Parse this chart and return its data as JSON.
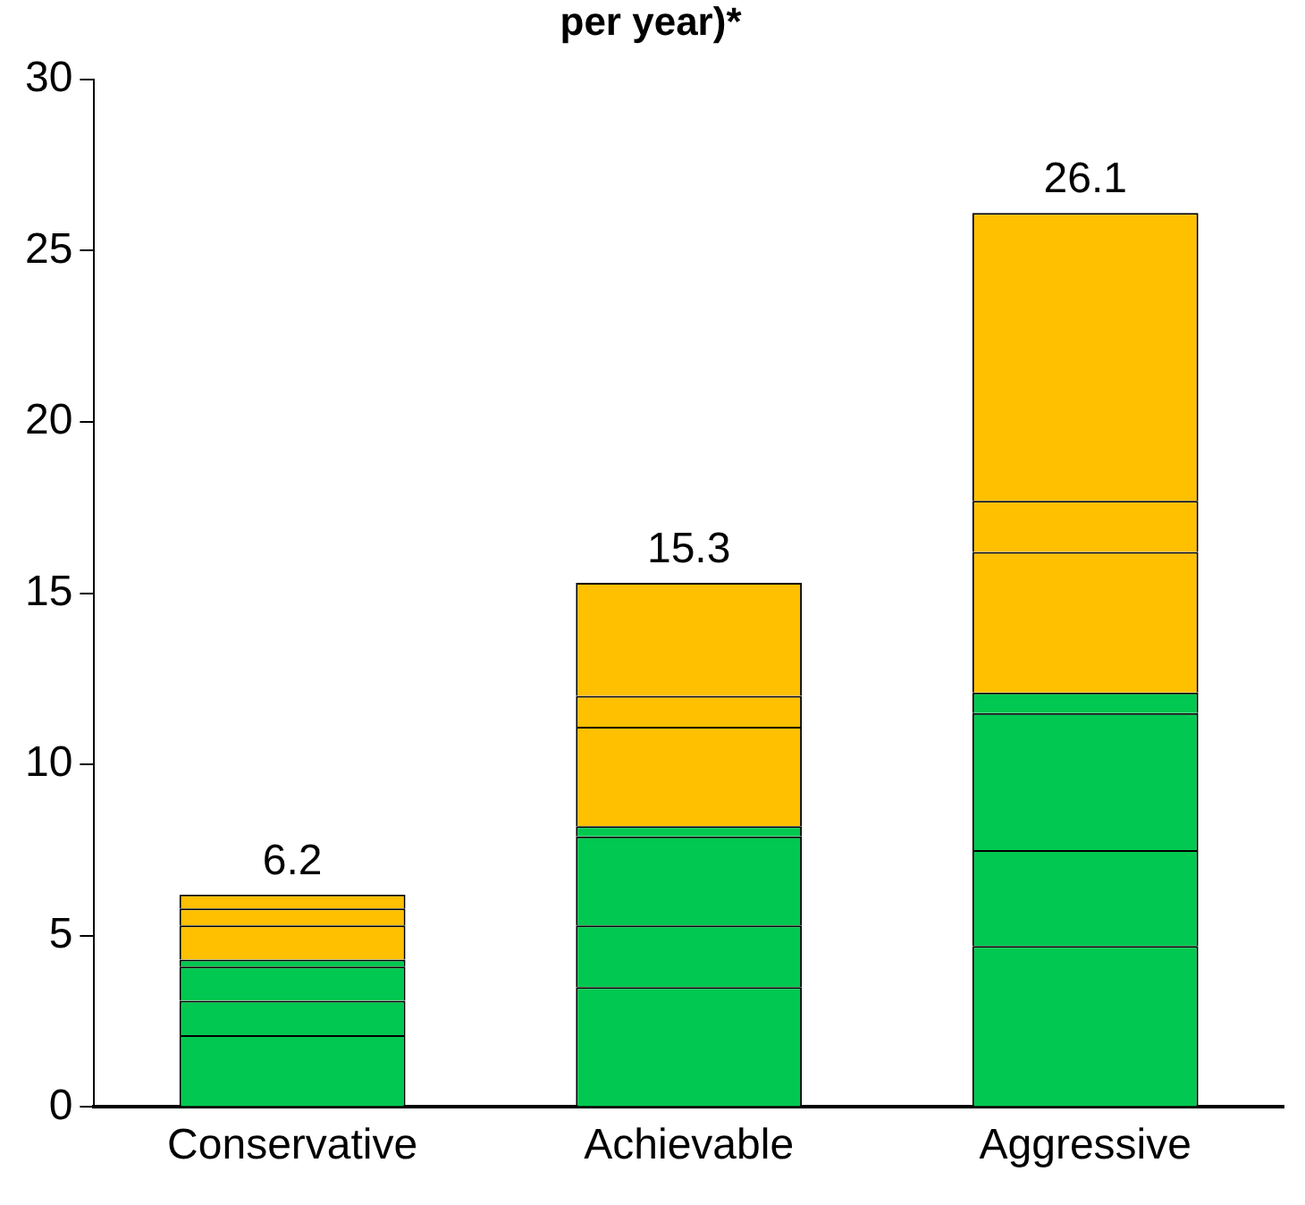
{
  "chart_data": {
    "type": "bar",
    "title": "per year)*",
    "categories": [
      "Conservative",
      "Achievable",
      "Aggressive"
    ],
    "stacked": true,
    "series": [
      {
        "color": "#00c850",
        "values": [
          2.1,
          3.5,
          4.7
        ]
      },
      {
        "color": "#00c850",
        "values": [
          1.0,
          1.8,
          2.8
        ]
      },
      {
        "color": "#00c850",
        "values": [
          1.0,
          2.6,
          4.0
        ]
      },
      {
        "color": "#00c850",
        "values": [
          0.2,
          0.3,
          0.6
        ]
      },
      {
        "color": "#ffc000",
        "values": [
          1.0,
          2.9,
          4.1
        ]
      },
      {
        "color": "#ffc000",
        "values": [
          0.5,
          0.9,
          1.5
        ]
      },
      {
        "color": "#ffc000",
        "values": [
          0.4,
          3.3,
          8.4
        ]
      }
    ],
    "totals": [
      "6.2",
      "15.3",
      "26.1"
    ],
    "ylim": [
      0,
      30
    ],
    "yticks": [
      0,
      5,
      10,
      15,
      20,
      25,
      30
    ],
    "grid": false,
    "legend": false
  }
}
